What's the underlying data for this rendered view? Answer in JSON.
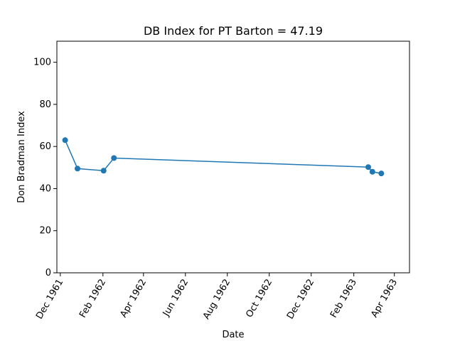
{
  "chart_data": {
    "type": "line",
    "title": "DB Index for PT Barton = 47.19",
    "xlabel": "Date",
    "ylabel": "Don Bradman Index",
    "ylim": [
      0,
      110
    ],
    "xlim": [
      "1961-11-26",
      "1963-04-23"
    ],
    "x_ticks": [
      {
        "date": "1961-12-01",
        "label": "Dec 1961"
      },
      {
        "date": "1962-02-01",
        "label": "Feb 1962"
      },
      {
        "date": "1962-04-01",
        "label": "Apr 1962"
      },
      {
        "date": "1962-06-01",
        "label": "Jun 1962"
      },
      {
        "date": "1962-08-01",
        "label": "Aug 1962"
      },
      {
        "date": "1962-10-01",
        "label": "Oct 1962"
      },
      {
        "date": "1962-12-01",
        "label": "Dec 1962"
      },
      {
        "date": "1963-02-01",
        "label": "Feb 1963"
      },
      {
        "date": "1963-04-01",
        "label": "Apr 1963"
      }
    ],
    "y_ticks": [
      0,
      20,
      40,
      60,
      80,
      100
    ],
    "grid": false,
    "series": [
      {
        "color": "#1f77b4",
        "points": [
          {
            "x": "1961-12-08",
            "y": 63.0
          },
          {
            "x": "1961-12-26",
            "y": 49.5
          },
          {
            "x": "1962-02-02",
            "y": 48.5
          },
          {
            "x": "1962-02-17",
            "y": 54.5
          },
          {
            "x": "1963-02-22",
            "y": 50.2
          },
          {
            "x": "1963-02-28",
            "y": 48.0
          },
          {
            "x": "1963-03-13",
            "y": 47.19
          }
        ]
      }
    ]
  }
}
